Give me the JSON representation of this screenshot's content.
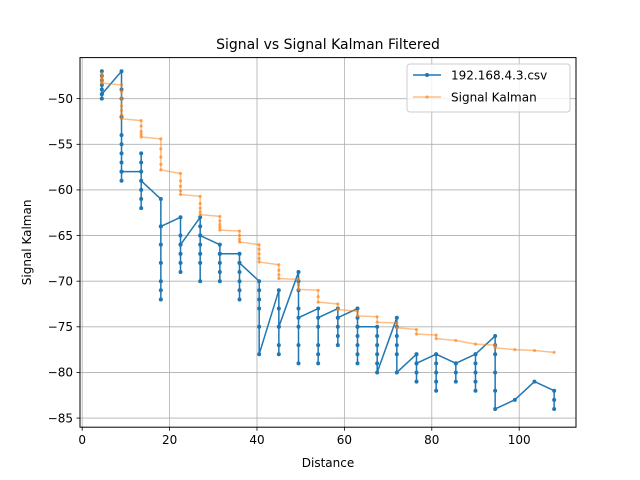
{
  "chart_data": {
    "type": "line",
    "title": "Signal vs Signal Kalman Filtered",
    "xlabel": "Distance",
    "ylabel": "Signal Kalman",
    "xlim": [
      -0.5,
      113
    ],
    "ylim": [
      -86,
      -45.5
    ],
    "xticks": [
      0,
      20,
      40,
      60,
      80,
      100
    ],
    "yticks": [
      -85,
      -80,
      -75,
      -70,
      -65,
      -60,
      -55,
      -50
    ],
    "grid": true,
    "legend_position": "top-right",
    "series": [
      {
        "name": "192.168.4.3.csv",
        "color": "#1f77b4",
        "x": [
          4.5,
          4.5,
          4.5,
          4.5,
          4.5,
          4.5,
          4.5,
          4.5,
          9,
          9,
          9,
          9,
          9,
          9,
          9,
          9,
          9,
          9,
          9,
          13.5,
          13.5,
          13.5,
          13.5,
          13.5,
          13.5,
          13.5,
          18,
          18,
          18,
          18,
          18,
          18,
          18,
          18,
          22.5,
          22.5,
          22.5,
          22.5,
          22.5,
          22.5,
          22.5,
          27,
          27,
          27,
          27,
          27,
          27,
          27,
          27,
          31.5,
          31.5,
          31.5,
          31.5,
          31.5,
          31.5,
          36,
          36,
          36,
          36,
          36,
          36,
          36,
          40.5,
          40.5,
          40.5,
          40.5,
          40.5,
          40.5,
          45,
          45,
          45,
          45,
          45,
          45,
          49.5,
          49.5,
          49.5,
          49.5,
          49.5,
          49.5,
          49.5,
          49.5,
          54,
          54,
          54,
          54,
          54,
          54,
          58.5,
          58.5,
          58.5,
          58.5,
          58.5,
          58.5,
          63,
          63,
          63,
          63,
          63,
          63,
          63,
          63,
          67.5,
          67.5,
          67.5,
          67.5,
          67.5,
          67.5,
          72,
          72,
          72,
          72,
          72,
          72,
          76.5,
          76.5,
          76.5,
          76.5,
          76.5,
          76.5,
          81,
          81,
          81,
          81,
          81,
          81,
          85.5,
          85.5,
          85.5,
          85.5,
          90,
          90,
          90,
          90,
          90,
          90,
          94.5,
          94.5,
          94.5,
          94.5,
          94.5,
          94.5,
          99,
          103.5,
          108,
          108,
          108
        ],
        "y": [
          -47,
          -47.5,
          -48,
          -48.5,
          -49,
          -49.5,
          -50,
          -49.5,
          -47,
          -49,
          -50,
          -52,
          -54,
          -55,
          -56,
          -57,
          -58,
          -59,
          -58,
          -58,
          -56,
          -57,
          -60,
          -61,
          -62,
          -59,
          -61,
          -64,
          -66,
          -68,
          -70,
          -71,
          -72,
          -64,
          -63,
          -65,
          -66,
          -67,
          -68,
          -69,
          -66,
          -63,
          -64,
          -65,
          -66,
          -67,
          -68,
          -70,
          -65,
          -66,
          -67,
          -68,
          -69,
          -70,
          -67,
          -67,
          -68,
          -69,
          -70,
          -71,
          -72,
          -68,
          -70,
          -71,
          -72,
          -73,
          -75,
          -78,
          -71,
          -73,
          -75,
          -77,
          -78,
          -75,
          -69,
          -70,
          -71,
          -73,
          -75,
          -77,
          -79,
          -74,
          -73,
          -75,
          -77,
          -78,
          -79,
          -74,
          -73,
          -74,
          -75,
          -76,
          -77,
          -74,
          -73,
          -74,
          -75,
          -76,
          -77,
          -78,
          -79,
          -75,
          -75,
          -76,
          -77,
          -78,
          -79,
          -80,
          -74,
          -75,
          -76,
          -77,
          -78,
          -80,
          -78,
          -79,
          -80,
          -81,
          -78,
          -79,
          -78,
          -79,
          -80,
          -81,
          -82,
          -78,
          -79,
          -80,
          -81,
          -79,
          -78,
          -79,
          -80,
          -81,
          -82,
          -78,
          -76,
          -77,
          -78,
          -80,
          -82,
          -84,
          -83,
          -81,
          -82,
          -83,
          -84
        ]
      },
      {
        "name": "Signal Kalman",
        "color": "#ff7f0e",
        "x": [
          4.5,
          4.5,
          4.5,
          4.5,
          4.5,
          4.5,
          9,
          9,
          9,
          9,
          9,
          9,
          9,
          13.5,
          13.5,
          13.5,
          13.5,
          13.5,
          18,
          18,
          18,
          18,
          18,
          22.5,
          22.5,
          22.5,
          22.5,
          22.5,
          27,
          27,
          27,
          27,
          27,
          31.5,
          31.5,
          31.5,
          31.5,
          31.5,
          36,
          36,
          36,
          36,
          40.5,
          40.5,
          40.5,
          40.5,
          40.5,
          45,
          45,
          45,
          45,
          49.5,
          49.5,
          49.5,
          54,
          54,
          54,
          58.5,
          58.5,
          63,
          63,
          67.5,
          67.5,
          72,
          72,
          76.5,
          76.5,
          81,
          81,
          85.5,
          90,
          94.5,
          94.5,
          99,
          103.5,
          108
        ],
        "y": [
          -47.2,
          -47.5,
          -47.8,
          -48.0,
          -48.2,
          -48.3,
          -48.5,
          -49.2,
          -50.0,
          -50.8,
          -51.3,
          -51.8,
          -52.2,
          -52.4,
          -53.0,
          -53.6,
          -53.9,
          -54.2,
          -54.4,
          -55.5,
          -56.4,
          -57.2,
          -57.8,
          -58.2,
          -59.0,
          -59.6,
          -60.1,
          -60.5,
          -60.7,
          -61.5,
          -62.0,
          -62.4,
          -62.7,
          -62.9,
          -63.4,
          -63.8,
          -64.1,
          -64.4,
          -64.5,
          -65.0,
          -65.4,
          -65.7,
          -66.0,
          -66.5,
          -67.0,
          -67.5,
          -67.9,
          -68.2,
          -68.8,
          -69.3,
          -69.7,
          -69.8,
          -70.4,
          -70.9,
          -71.0,
          -71.7,
          -72.3,
          -72.5,
          -73.1,
          -73.3,
          -73.8,
          -73.9,
          -74.5,
          -74.6,
          -75.1,
          -75.3,
          -75.8,
          -75.9,
          -76.3,
          -76.5,
          -76.9,
          -77.0,
          -77.3,
          -77.5,
          -77.6,
          -77.8
        ]
      }
    ]
  }
}
